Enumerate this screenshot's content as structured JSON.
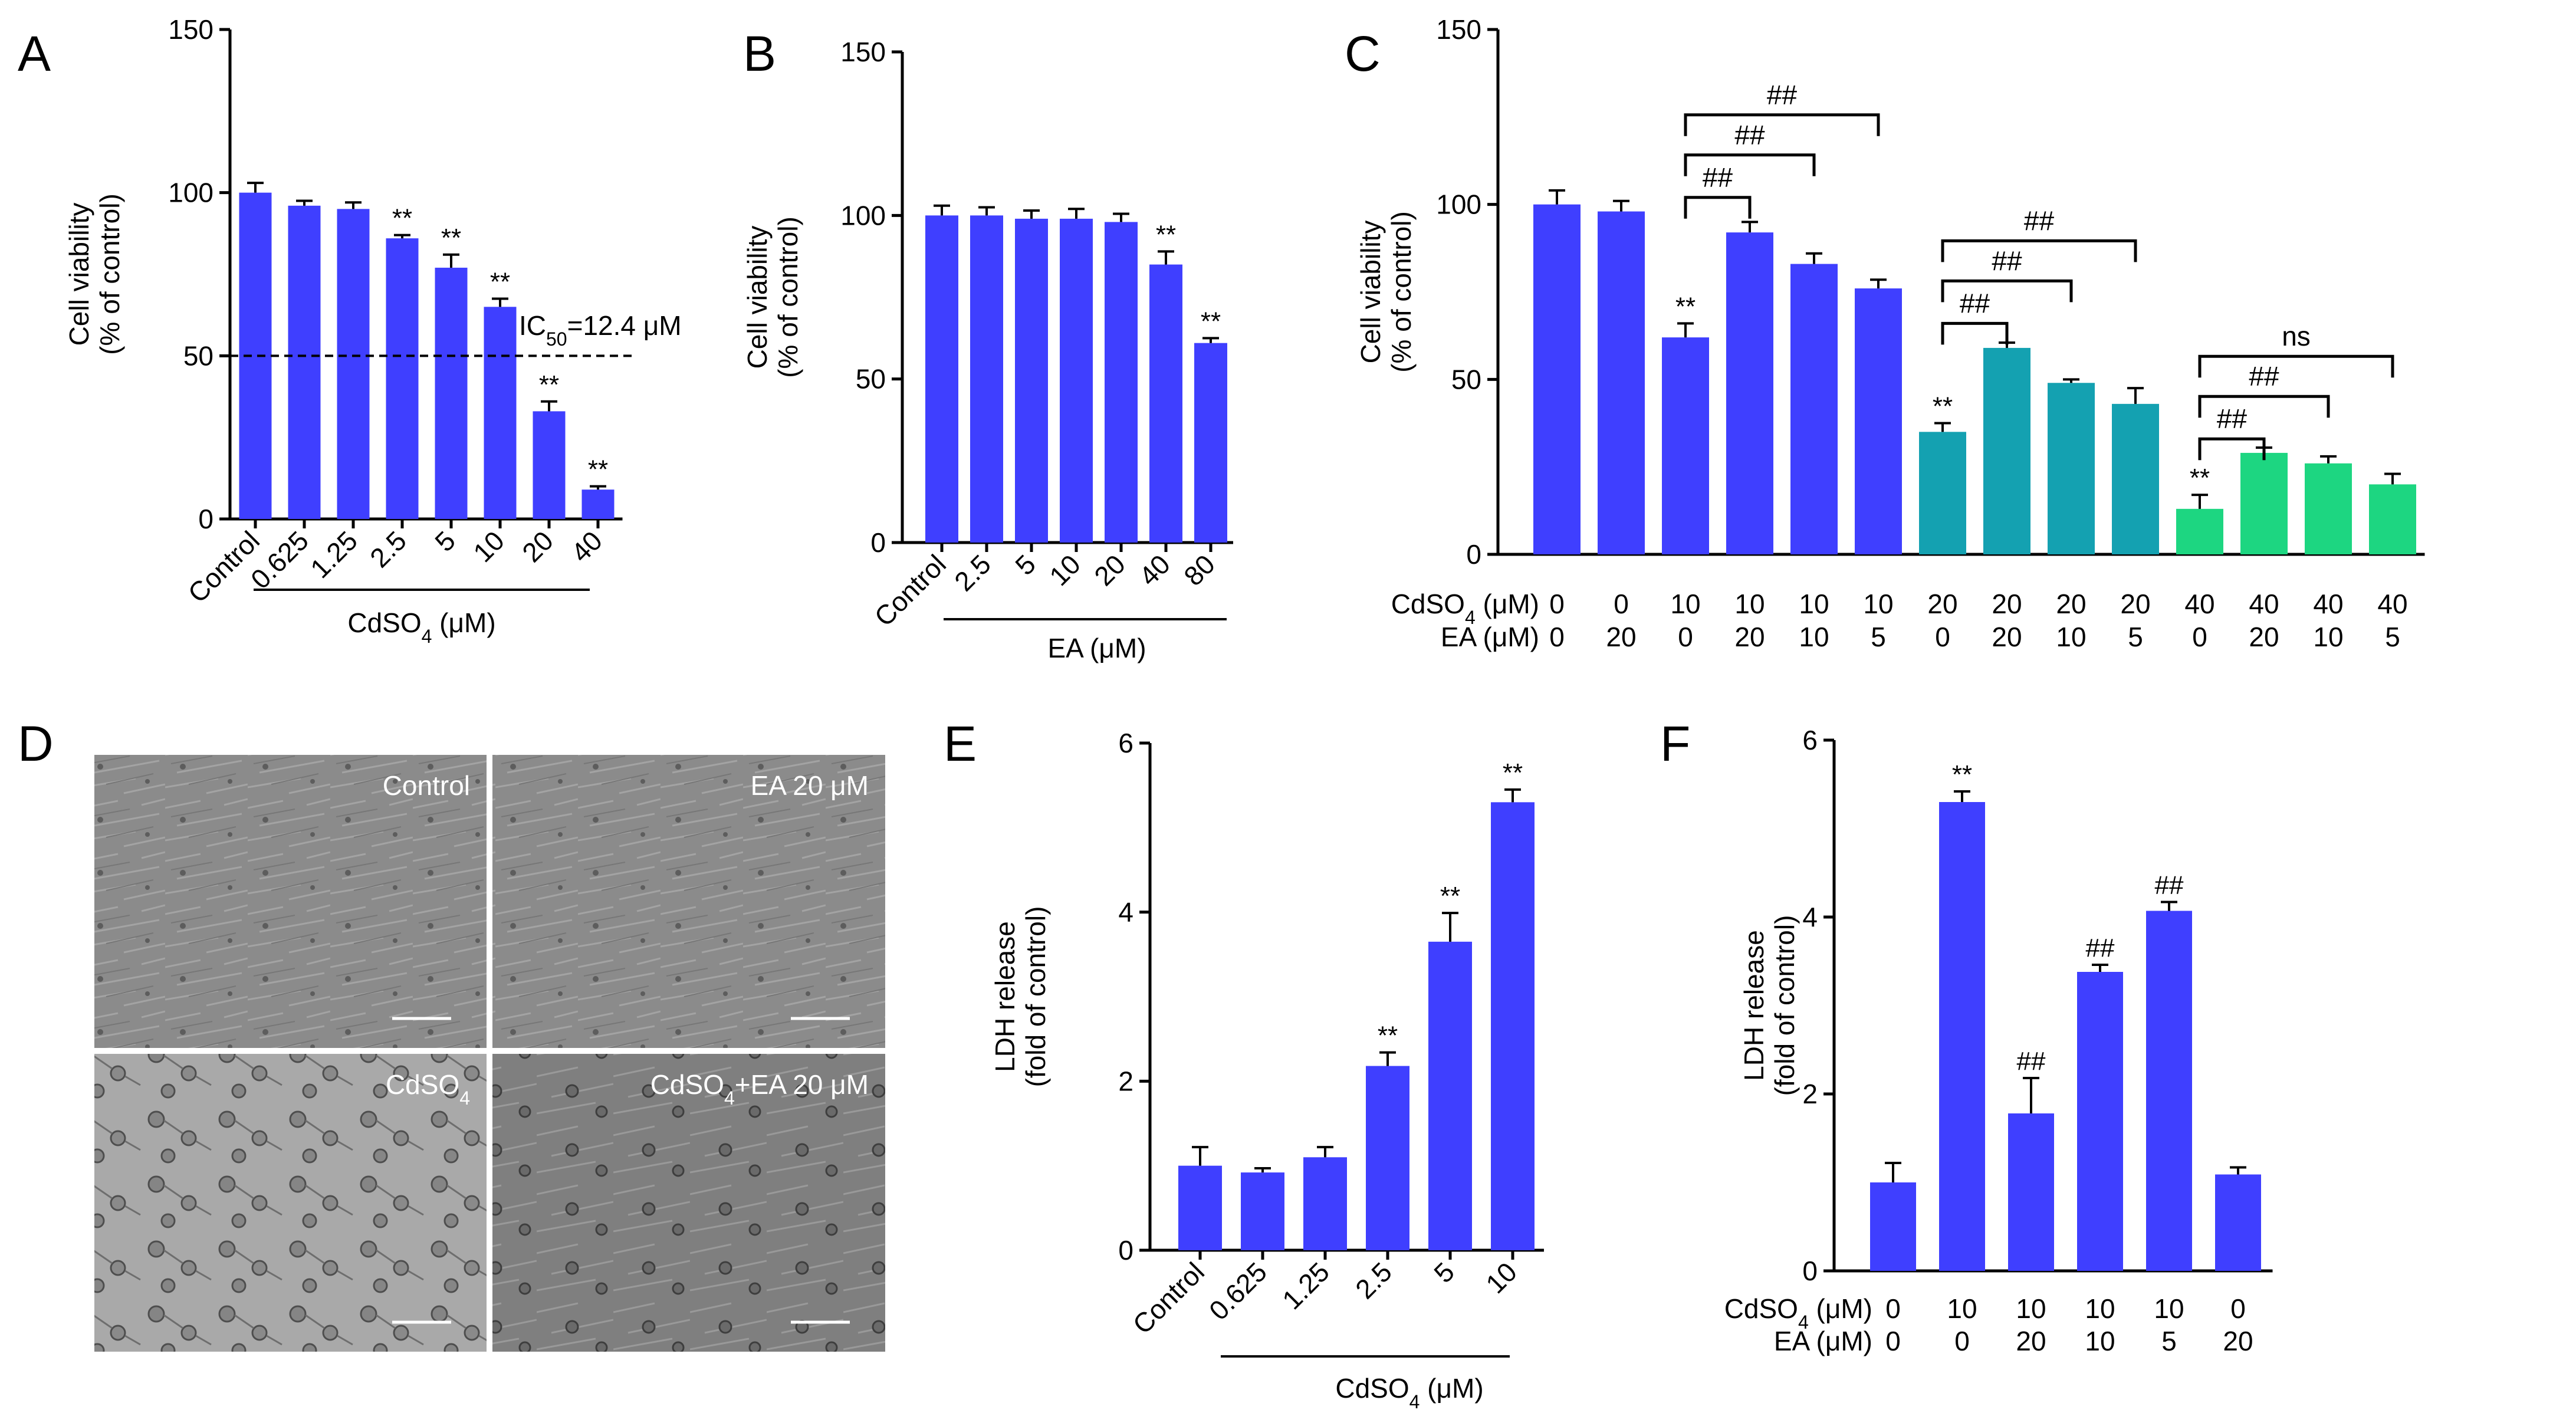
{
  "colors": {
    "blue": "#3f3fff",
    "teal": "#14a1b1",
    "green": "#1dd681",
    "micro_light": "#8d8d8d",
    "micro_dark": "#7d7d7d"
  },
  "panel_letters": {
    "A": "A",
    "B": "B",
    "C": "C",
    "D": "D",
    "E": "E",
    "F": "F"
  },
  "chart_data": [
    {
      "panel": "A",
      "type": "bar",
      "categories": [
        "Control",
        "0.625",
        "1.25",
        "2.5",
        "5",
        "10",
        "20",
        "40"
      ],
      "values": [
        100,
        96,
        95,
        86,
        77,
        65,
        33,
        9
      ],
      "errors": [
        3,
        1.5,
        2,
        1,
        4,
        2.5,
        3,
        1
      ],
      "sig": [
        "",
        "",
        "",
        "**",
        "**",
        "**",
        "**",
        "**"
      ],
      "ylabel": [
        "Cell viability",
        "(% of control)"
      ],
      "xlabel": "CdSO4 (μM)",
      "xlabel_main": "CdSO",
      "xlabel_sub": "4",
      "xlabel_rest": " (μM)",
      "ylim": [
        0,
        150
      ],
      "yticks": [
        "0",
        "50",
        "100",
        "150"
      ],
      "reference_line": 50,
      "annotation_main": "IC",
      "annotation_sub": "50",
      "annotation_rest": "=12.4 μM",
      "annotation": "IC50=12.4 μM"
    },
    {
      "panel": "B",
      "type": "bar",
      "categories": [
        "Control",
        "2.5",
        "5",
        "10",
        "20",
        "40",
        "80"
      ],
      "values": [
        100,
        100,
        99,
        99,
        98,
        85,
        61
      ],
      "errors": [
        3,
        2.5,
        2.5,
        3,
        2.5,
        4,
        1.5
      ],
      "sig": [
        "",
        "",
        "",
        "",
        "",
        "**",
        "**"
      ],
      "ylabel": [
        "Cell viability",
        "(% of control)"
      ],
      "xlabel": "EA (μM)",
      "ylim": [
        0,
        150
      ],
      "yticks": [
        "0",
        "50",
        "100",
        "150"
      ]
    },
    {
      "panel": "C",
      "type": "bar",
      "values": [
        100,
        98,
        62,
        92,
        83,
        76,
        35,
        59,
        49,
        43,
        13,
        29,
        26,
        20
      ],
      "errors": [
        4,
        3,
        4,
        3,
        3,
        2.5,
        2.5,
        1.5,
        1,
        4.5,
        4,
        1.5,
        2,
        3
      ],
      "colors": [
        "blue",
        "blue",
        "blue",
        "blue",
        "blue",
        "blue",
        "teal",
        "teal",
        "teal",
        "teal",
        "green",
        "green",
        "green",
        "green"
      ],
      "sig": [
        "",
        "",
        "**",
        "",
        "",
        "",
        "**",
        "",
        "",
        "",
        "**",
        "",
        "",
        ""
      ],
      "ylabel": [
        "Cell viability",
        "(% of control)"
      ],
      "ylim": [
        0,
        150
      ],
      "yticks": [
        "0",
        "50",
        "100",
        "150"
      ],
      "row_labels": [
        {
          "main": "CdSO",
          "sub": "4",
          "rest": " (μM)",
          "text": "CdSO4 (μM)"
        },
        {
          "main": "EA (μM)",
          "sub": "",
          "rest": "",
          "text": "EA (μM)"
        }
      ],
      "cdso4": [
        "0",
        "0",
        "10",
        "10",
        "10",
        "10",
        "20",
        "20",
        "20",
        "20",
        "40",
        "40",
        "40",
        "40"
      ],
      "ea": [
        "0",
        "20",
        "0",
        "20",
        "10",
        "5",
        "0",
        "20",
        "10",
        "5",
        "0",
        "20",
        "10",
        "5"
      ],
      "brackets": [
        {
          "from": 2,
          "to": 3,
          "label": "##",
          "level": 0
        },
        {
          "from": 2,
          "to": 4,
          "label": "##",
          "level": 1
        },
        {
          "from": 2,
          "to": 5,
          "label": "##",
          "level": 2
        },
        {
          "from": 6,
          "to": 7,
          "label": "##",
          "level": 0
        },
        {
          "from": 6,
          "to": 8,
          "label": "##",
          "level": 1
        },
        {
          "from": 6,
          "to": 9,
          "label": "##",
          "level": 2
        },
        {
          "from": 10,
          "to": 11,
          "label": "##",
          "level": 0
        },
        {
          "from": 10,
          "to": 12,
          "label": "##",
          "level": 1
        },
        {
          "from": 10,
          "to": 13,
          "label": "ns",
          "level": 2
        }
      ]
    },
    {
      "panel": "E",
      "type": "bar",
      "categories": [
        "Control",
        "0.625",
        "1.25",
        "2.5",
        "5",
        "10"
      ],
      "values": [
        1.0,
        0.92,
        1.1,
        2.18,
        3.65,
        5.3
      ],
      "errors": [
        0.22,
        0.05,
        0.12,
        0.16,
        0.34,
        0.15
      ],
      "sig": [
        "",
        "",
        "",
        "**",
        "**",
        "**"
      ],
      "ylabel": [
        "LDH release",
        "(fold of control)"
      ],
      "xlabel": "CdSO4 (μM)",
      "xlabel_main": "CdSO",
      "xlabel_sub": "4",
      "xlabel_rest": " (μM)",
      "ylim": [
        0,
        6
      ],
      "yticks": [
        "0",
        "2",
        "4",
        "6"
      ]
    },
    {
      "panel": "F",
      "type": "bar",
      "values": [
        1.0,
        5.3,
        1.78,
        3.38,
        4.07,
        1.09
      ],
      "errors": [
        0.22,
        0.12,
        0.4,
        0.08,
        0.1,
        0.08
      ],
      "sig": [
        "",
        "**",
        "##",
        "##",
        "##",
        ""
      ],
      "ylabel": [
        "LDH release",
        "(fold of control)"
      ],
      "ylim": [
        0,
        6
      ],
      "yticks": [
        "0",
        "2",
        "4",
        "6"
      ],
      "row_labels": [
        {
          "main": "CdSO",
          "sub": "4",
          "rest": " (μM)",
          "text": "CdSO4 (μM)"
        },
        {
          "main": "EA (μM)",
          "sub": "",
          "rest": "",
          "text": "EA (μM)"
        }
      ],
      "cdso4": [
        "0",
        "10",
        "10",
        "10",
        "10",
        "0"
      ],
      "ea": [
        "0",
        "0",
        "20",
        "10",
        "5",
        "20"
      ]
    }
  ],
  "micrographs": [
    {
      "label_main": "Control",
      "label_sub": "",
      "label_rest": "",
      "label": "Control",
      "kind": "light"
    },
    {
      "label_main": "EA 20 μM",
      "label_sub": "",
      "label_rest": "",
      "label": "EA 20 μM",
      "kind": "light"
    },
    {
      "label_main": "CdSO",
      "label_sub": "4",
      "label_rest": "",
      "label": "CdSO4",
      "kind": "cells"
    },
    {
      "label_main": "CdSO",
      "label_sub": "4",
      "label_rest": "+EA 20 μM",
      "label": "CdSO4+EA 20 μM",
      "kind": "mixed"
    }
  ]
}
